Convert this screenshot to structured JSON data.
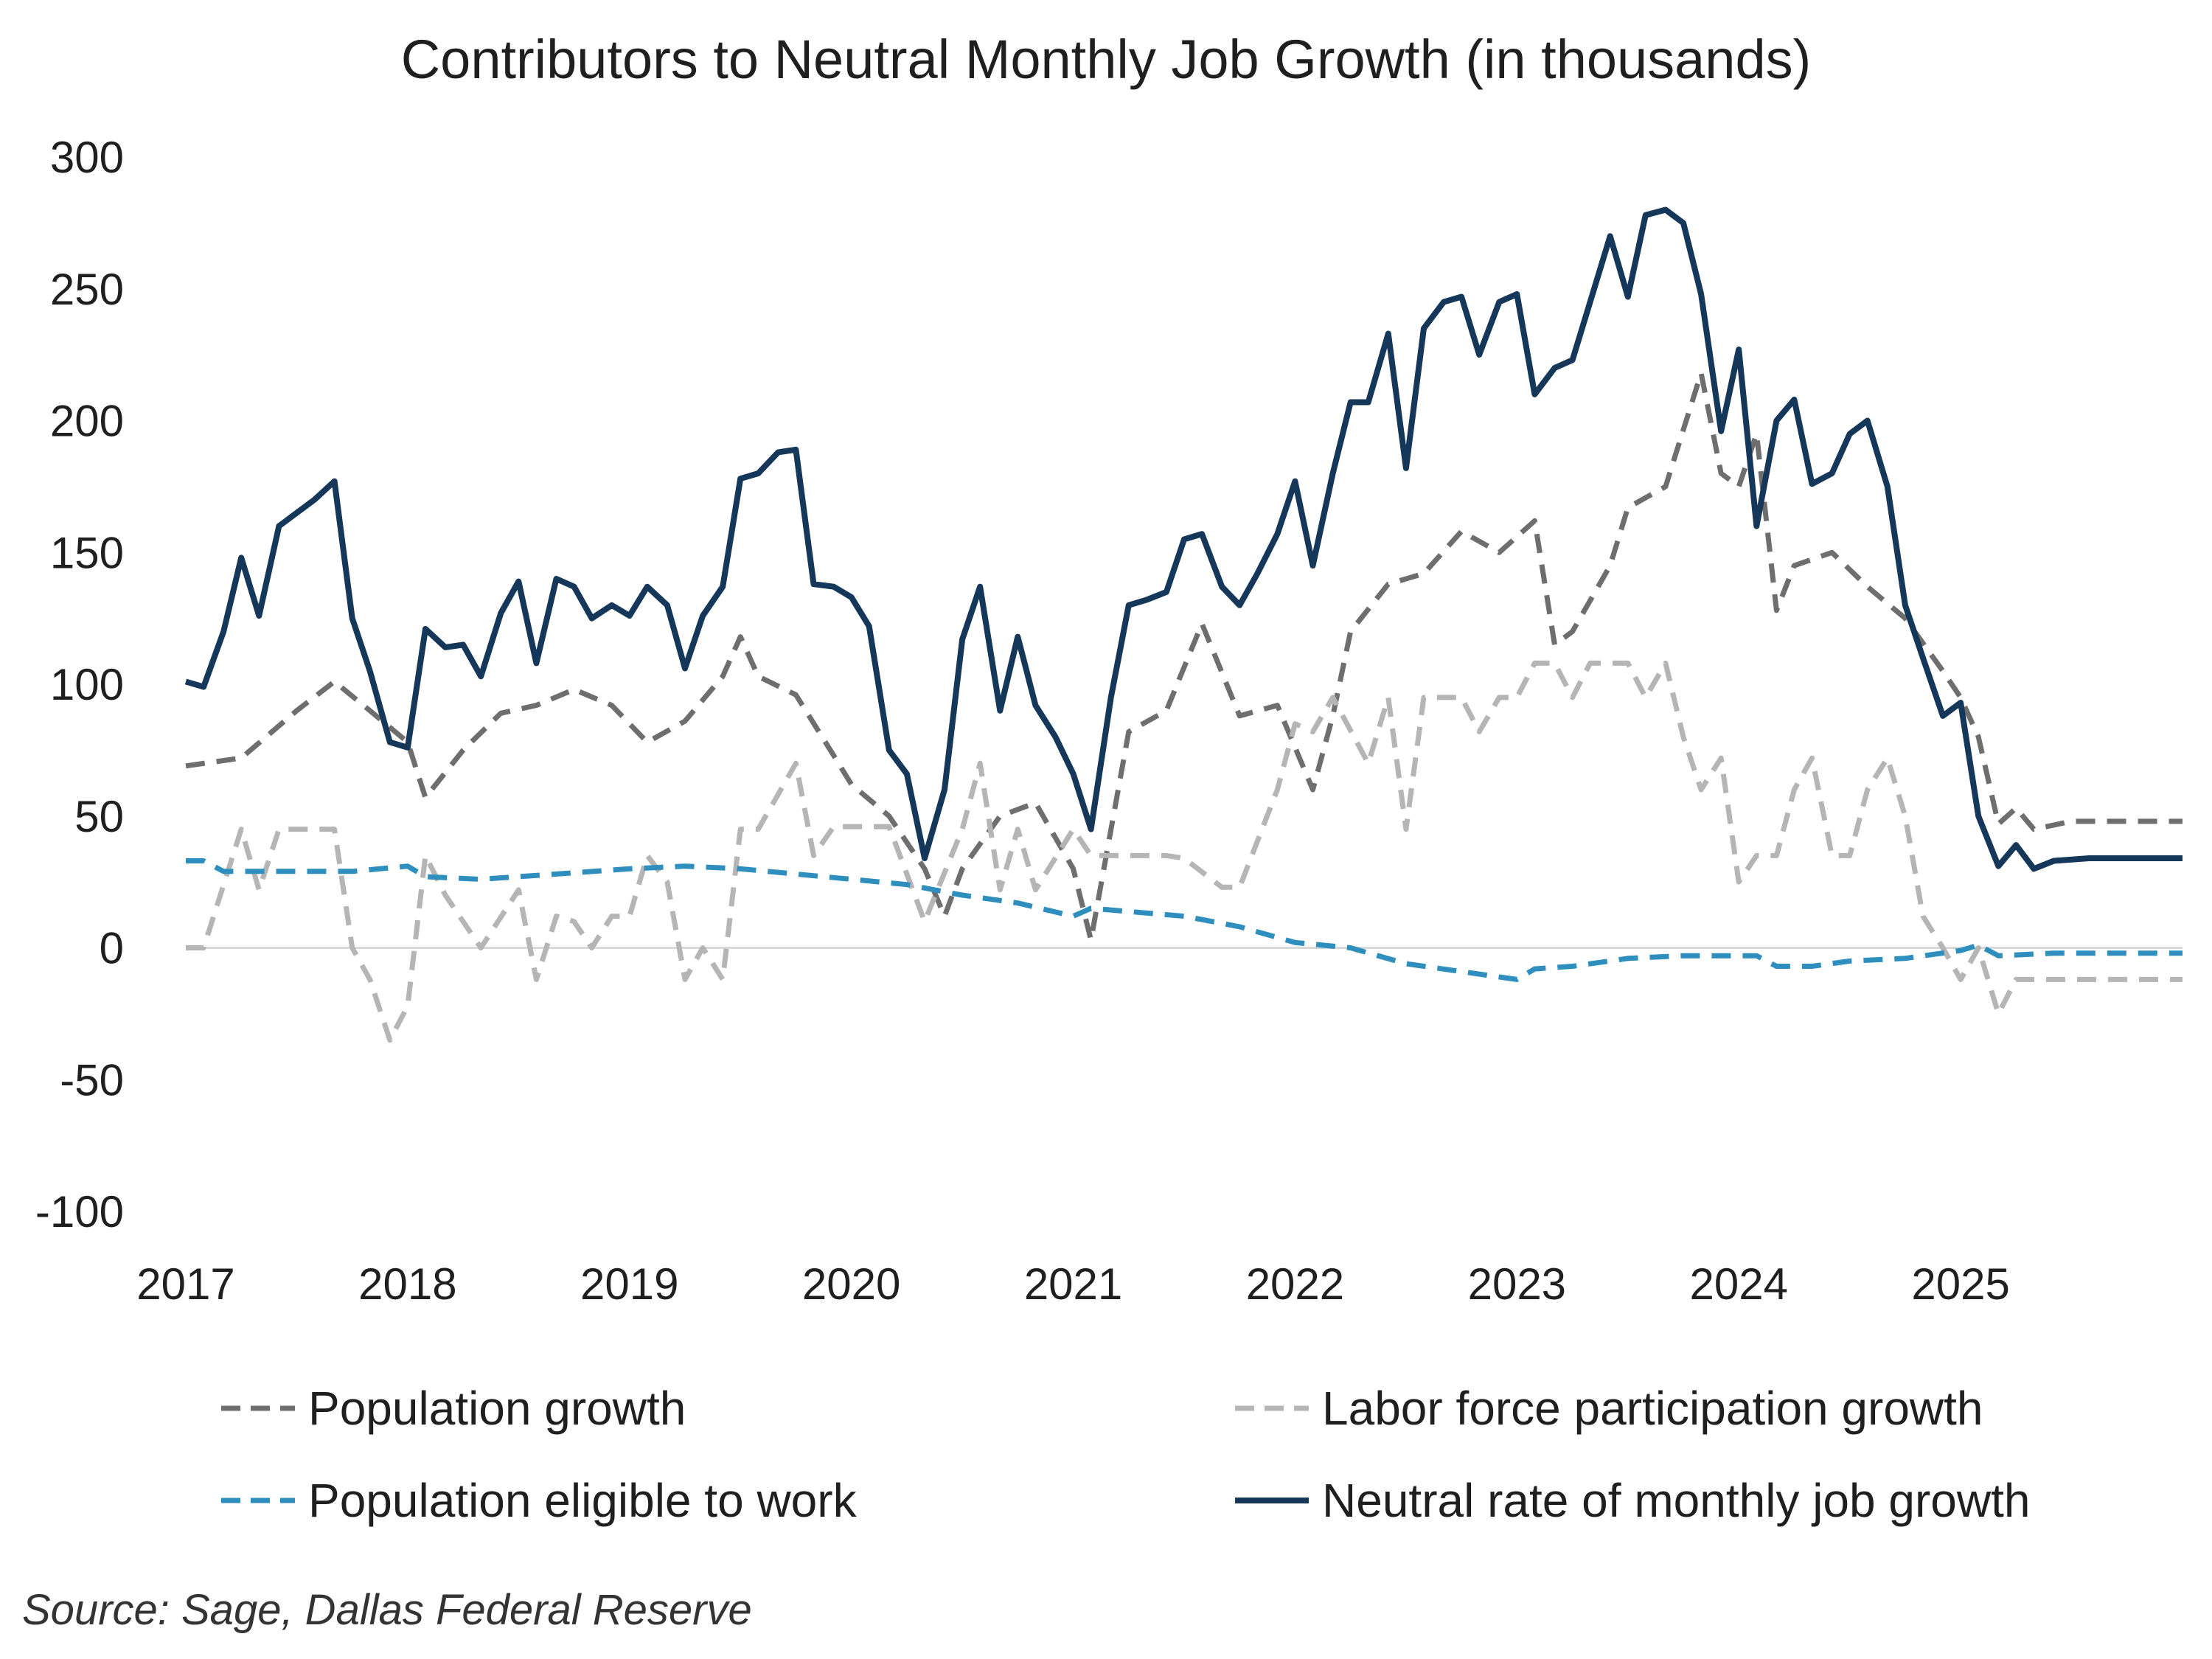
{
  "chart_data": {
    "type": "line",
    "title": "Contributors to Neutral Monthly Job Growth (in thousands)",
    "xlabel": "",
    "ylabel": "",
    "ylim": [
      -100,
      300
    ],
    "yticks": [
      300,
      250,
      200,
      150,
      100,
      50,
      0,
      -50,
      -100
    ],
    "xlim": [
      2017.0,
      2026.0
    ],
    "xticks": [
      "2017",
      "2018",
      "2019",
      "2020",
      "2021",
      "2022",
      "2023",
      "2024",
      "2025"
    ],
    "grid": false,
    "legend": "bottom",
    "source": "Source: Sage, Dallas Federal Reserve",
    "series": [
      {
        "name": "Population growth",
        "style": "dashed",
        "color": "#6e6e6e",
        "points": [
          [
            2017.0,
            69
          ],
          [
            2017.25,
            72
          ],
          [
            2017.5,
            90
          ],
          [
            2017.67,
            101
          ],
          [
            2017.83,
            90
          ],
          [
            2018.0,
            78
          ],
          [
            2018.08,
            57
          ],
          [
            2018.25,
            75
          ],
          [
            2018.42,
            89
          ],
          [
            2018.58,
            92
          ],
          [
            2018.75,
            98
          ],
          [
            2018.92,
            92
          ],
          [
            2019.08,
            78
          ],
          [
            2019.25,
            86
          ],
          [
            2019.42,
            103
          ],
          [
            2019.5,
            118
          ],
          [
            2019.58,
            103
          ],
          [
            2019.75,
            96
          ],
          [
            2019.92,
            73
          ],
          [
            2020.0,
            62
          ],
          [
            2020.17,
            50
          ],
          [
            2020.33,
            30
          ],
          [
            2020.42,
            12
          ],
          [
            2020.5,
            30
          ],
          [
            2020.67,
            50
          ],
          [
            2020.83,
            55
          ],
          [
            2021.0,
            30
          ],
          [
            2021.08,
            3
          ],
          [
            2021.25,
            82
          ],
          [
            2021.42,
            90
          ],
          [
            2021.58,
            123
          ],
          [
            2021.75,
            88
          ],
          [
            2021.92,
            92
          ],
          [
            2022.08,
            60
          ],
          [
            2022.17,
            88
          ],
          [
            2022.25,
            120
          ],
          [
            2022.42,
            138
          ],
          [
            2022.58,
            142
          ],
          [
            2022.75,
            158
          ],
          [
            2022.92,
            150
          ],
          [
            2023.08,
            162
          ],
          [
            2023.17,
            115
          ],
          [
            2023.25,
            120
          ],
          [
            2023.42,
            145
          ],
          [
            2023.5,
            167
          ],
          [
            2023.67,
            175
          ],
          [
            2023.83,
            218
          ],
          [
            2023.92,
            180
          ],
          [
            2024.0,
            175
          ],
          [
            2024.08,
            195
          ],
          [
            2024.17,
            128
          ],
          [
            2024.25,
            145
          ],
          [
            2024.42,
            150
          ],
          [
            2024.58,
            137
          ],
          [
            2024.75,
            125
          ],
          [
            2024.92,
            105
          ],
          [
            2025.0,
            95
          ],
          [
            2025.08,
            80
          ],
          [
            2025.17,
            47
          ],
          [
            2025.25,
            53
          ],
          [
            2025.33,
            45
          ],
          [
            2025.5,
            48
          ],
          [
            2025.75,
            48
          ],
          [
            2026.0,
            48
          ]
        ]
      },
      {
        "name": "Labor force participation growth",
        "style": "dashed",
        "color": "#b5b5b5",
        "points": [
          [
            2017.0,
            0
          ],
          [
            2017.08,
            0
          ],
          [
            2017.25,
            45
          ],
          [
            2017.33,
            22
          ],
          [
            2017.42,
            45
          ],
          [
            2017.67,
            45
          ],
          [
            2017.75,
            0
          ],
          [
            2017.83,
            -12
          ],
          [
            2017.92,
            -35
          ],
          [
            2018.0,
            -22
          ],
          [
            2018.08,
            35
          ],
          [
            2018.17,
            20
          ],
          [
            2018.25,
            10
          ],
          [
            2018.33,
            0
          ],
          [
            2018.5,
            22
          ],
          [
            2018.58,
            -12
          ],
          [
            2018.67,
            12
          ],
          [
            2018.75,
            10
          ],
          [
            2018.83,
            0
          ],
          [
            2018.92,
            12
          ],
          [
            2019.0,
            12
          ],
          [
            2019.08,
            35
          ],
          [
            2019.17,
            25
          ],
          [
            2019.25,
            -12
          ],
          [
            2019.33,
            0
          ],
          [
            2019.42,
            -12
          ],
          [
            2019.5,
            45
          ],
          [
            2019.58,
            45
          ],
          [
            2019.75,
            70
          ],
          [
            2019.83,
            35
          ],
          [
            2019.92,
            46
          ],
          [
            2020.17,
            46
          ],
          [
            2020.33,
            10
          ],
          [
            2020.5,
            45
          ],
          [
            2020.58,
            70
          ],
          [
            2020.67,
            22
          ],
          [
            2020.75,
            45
          ],
          [
            2020.83,
            22
          ],
          [
            2021.0,
            45
          ],
          [
            2021.08,
            35
          ],
          [
            2021.42,
            35
          ],
          [
            2021.5,
            34
          ],
          [
            2021.67,
            23
          ],
          [
            2021.75,
            23
          ],
          [
            2021.92,
            60
          ],
          [
            2022.0,
            85
          ],
          [
            2022.08,
            82
          ],
          [
            2022.17,
            95
          ],
          [
            2022.33,
            70
          ],
          [
            2022.42,
            95
          ],
          [
            2022.5,
            45
          ],
          [
            2022.58,
            95
          ],
          [
            2022.75,
            95
          ],
          [
            2022.83,
            82
          ],
          [
            2022.92,
            95
          ],
          [
            2023.0,
            95
          ],
          [
            2023.08,
            108
          ],
          [
            2023.17,
            108
          ],
          [
            2023.25,
            95
          ],
          [
            2023.33,
            108
          ],
          [
            2023.5,
            108
          ],
          [
            2023.58,
            95
          ],
          [
            2023.67,
            108
          ],
          [
            2023.75,
            80
          ],
          [
            2023.83,
            60
          ],
          [
            2023.92,
            72
          ],
          [
            2024.0,
            25
          ],
          [
            2024.08,
            35
          ],
          [
            2024.17,
            35
          ],
          [
            2024.25,
            60
          ],
          [
            2024.33,
            72
          ],
          [
            2024.42,
            35
          ],
          [
            2024.5,
            35
          ],
          [
            2024.58,
            60
          ],
          [
            2024.67,
            72
          ],
          [
            2024.75,
            50
          ],
          [
            2024.83,
            12
          ],
          [
            2024.92,
            0
          ],
          [
            2025.0,
            -12
          ],
          [
            2025.08,
            0
          ],
          [
            2025.17,
            -25
          ],
          [
            2025.25,
            -12
          ],
          [
            2025.5,
            -12
          ],
          [
            2026.0,
            -12
          ]
        ]
      },
      {
        "name": "Population eligible to work",
        "style": "dashed",
        "color": "#2e8fbf",
        "points": [
          [
            2017.0,
            33
          ],
          [
            2017.08,
            33
          ],
          [
            2017.17,
            29
          ],
          [
            2017.5,
            29
          ],
          [
            2017.75,
            29
          ],
          [
            2018.0,
            31
          ],
          [
            2018.08,
            27
          ],
          [
            2018.33,
            26
          ],
          [
            2018.67,
            28
          ],
          [
            2019.0,
            30
          ],
          [
            2019.25,
            31
          ],
          [
            2019.5,
            30
          ],
          [
            2019.75,
            28
          ],
          [
            2020.0,
            26
          ],
          [
            2020.25,
            24
          ],
          [
            2020.5,
            20
          ],
          [
            2020.75,
            17
          ],
          [
            2021.0,
            12
          ],
          [
            2021.08,
            15
          ],
          [
            2021.5,
            12
          ],
          [
            2021.75,
            8
          ],
          [
            2022.0,
            2
          ],
          [
            2022.25,
            0
          ],
          [
            2022.5,
            -6
          ],
          [
            2022.75,
            -9
          ],
          [
            2023.0,
            -12
          ],
          [
            2023.08,
            -8
          ],
          [
            2023.25,
            -7
          ],
          [
            2023.5,
            -4
          ],
          [
            2023.75,
            -3
          ],
          [
            2024.0,
            -3
          ],
          [
            2024.08,
            -3
          ],
          [
            2024.17,
            -7
          ],
          [
            2024.33,
            -7
          ],
          [
            2024.5,
            -5
          ],
          [
            2024.75,
            -4
          ],
          [
            2025.0,
            -1
          ],
          [
            2025.08,
            1
          ],
          [
            2025.17,
            -3
          ],
          [
            2025.42,
            -2
          ],
          [
            2025.75,
            -2
          ],
          [
            2026.0,
            -2
          ]
        ]
      },
      {
        "name": "Neutral rate of monthly job growth",
        "style": "solid",
        "color": "#14375a",
        "points": [
          [
            2017.0,
            101
          ],
          [
            2017.08,
            99
          ],
          [
            2017.17,
            120
          ],
          [
            2017.25,
            148
          ],
          [
            2017.33,
            126
          ],
          [
            2017.42,
            160
          ],
          [
            2017.5,
            165
          ],
          [
            2017.58,
            170
          ],
          [
            2017.67,
            177
          ],
          [
            2017.75,
            125
          ],
          [
            2017.83,
            105
          ],
          [
            2017.92,
            78
          ],
          [
            2018.0,
            76
          ],
          [
            2018.08,
            121
          ],
          [
            2018.17,
            114
          ],
          [
            2018.25,
            115
          ],
          [
            2018.33,
            103
          ],
          [
            2018.42,
            127
          ],
          [
            2018.5,
            139
          ],
          [
            2018.58,
            108
          ],
          [
            2018.67,
            140
          ],
          [
            2018.75,
            137
          ],
          [
            2018.83,
            125
          ],
          [
            2018.92,
            130
          ],
          [
            2019.0,
            126
          ],
          [
            2019.08,
            137
          ],
          [
            2019.17,
            130
          ],
          [
            2019.25,
            106
          ],
          [
            2019.33,
            126
          ],
          [
            2019.42,
            137
          ],
          [
            2019.5,
            178
          ],
          [
            2019.58,
            180
          ],
          [
            2019.67,
            188
          ],
          [
            2019.75,
            189
          ],
          [
            2019.83,
            138
          ],
          [
            2019.92,
            137
          ],
          [
            2020.0,
            133
          ],
          [
            2020.08,
            122
          ],
          [
            2020.17,
            75
          ],
          [
            2020.25,
            66
          ],
          [
            2020.33,
            34
          ],
          [
            2020.42,
            60
          ],
          [
            2020.5,
            117
          ],
          [
            2020.58,
            137
          ],
          [
            2020.67,
            90
          ],
          [
            2020.75,
            118
          ],
          [
            2020.83,
            92
          ],
          [
            2020.92,
            80
          ],
          [
            2021.0,
            66
          ],
          [
            2021.08,
            45
          ],
          [
            2021.17,
            95
          ],
          [
            2021.25,
            130
          ],
          [
            2021.33,
            132
          ],
          [
            2021.42,
            135
          ],
          [
            2021.5,
            155
          ],
          [
            2021.58,
            157
          ],
          [
            2021.67,
            137
          ],
          [
            2021.75,
            130
          ],
          [
            2021.83,
            142
          ],
          [
            2021.92,
            157
          ],
          [
            2022.0,
            177
          ],
          [
            2022.08,
            145
          ],
          [
            2022.17,
            180
          ],
          [
            2022.25,
            207
          ],
          [
            2022.33,
            207
          ],
          [
            2022.42,
            233
          ],
          [
            2022.5,
            182
          ],
          [
            2022.58,
            235
          ],
          [
            2022.67,
            245
          ],
          [
            2022.75,
            247
          ],
          [
            2022.83,
            225
          ],
          [
            2022.92,
            245
          ],
          [
            2023.0,
            248
          ],
          [
            2023.08,
            210
          ],
          [
            2023.17,
            220
          ],
          [
            2023.25,
            223
          ],
          [
            2023.33,
            245
          ],
          [
            2023.42,
            270
          ],
          [
            2023.5,
            247
          ],
          [
            2023.58,
            278
          ],
          [
            2023.67,
            280
          ],
          [
            2023.75,
            275
          ],
          [
            2023.83,
            248
          ],
          [
            2023.92,
            196
          ],
          [
            2024.0,
            227
          ],
          [
            2024.08,
            160
          ],
          [
            2024.17,
            200
          ],
          [
            2024.25,
            208
          ],
          [
            2024.33,
            176
          ],
          [
            2024.42,
            180
          ],
          [
            2024.5,
            195
          ],
          [
            2024.58,
            200
          ],
          [
            2024.67,
            175
          ],
          [
            2024.75,
            130
          ],
          [
            2024.83,
            110
          ],
          [
            2024.92,
            88
          ],
          [
            2025.0,
            93
          ],
          [
            2025.08,
            50
          ],
          [
            2025.17,
            31
          ],
          [
            2025.25,
            39
          ],
          [
            2025.33,
            30
          ],
          [
            2025.42,
            33
          ],
          [
            2025.58,
            34
          ],
          [
            2025.75,
            34
          ],
          [
            2026.0,
            34
          ]
        ]
      }
    ]
  }
}
